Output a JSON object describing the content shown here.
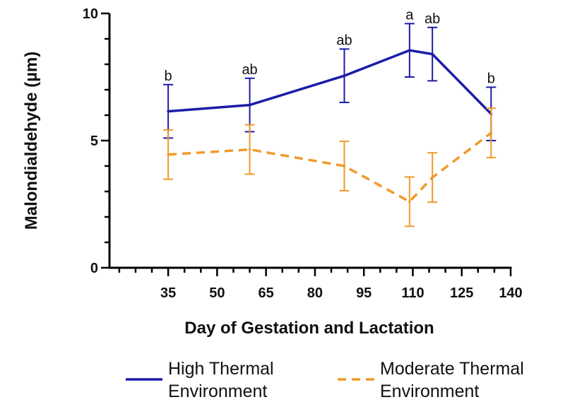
{
  "chart_data": {
    "type": "line",
    "title": "",
    "xlabel": "Day of Gestation and Lactation",
    "ylabel": "Malondialdehyde (µm)",
    "xlim": [
      17,
      140
    ],
    "ylim": [
      0,
      10
    ],
    "x_ticks": [
      35,
      50,
      65,
      80,
      95,
      110,
      125,
      140
    ],
    "x_tick_labels": [
      "35",
      "50",
      "65",
      "80",
      "95",
      "110",
      "125",
      "140"
    ],
    "y_ticks": [
      0,
      5,
      10
    ],
    "y_tick_labels": [
      "0",
      "5",
      "10"
    ],
    "x_minor_step": 5,
    "y_minor_step": 1,
    "grid": false,
    "legend_position": "bottom",
    "series": [
      {
        "name": "High Thermal Environment",
        "name_lines": [
          "High Thermal",
          "Environment"
        ],
        "color": "#1c1ca8",
        "line_style": "solid",
        "points": [
          {
            "x": 35,
            "y": 6.15,
            "err": 1.05,
            "label": "b"
          },
          {
            "x": 60,
            "y": 6.4,
            "err": 1.05,
            "label": "ab"
          },
          {
            "x": 89,
            "y": 7.55,
            "err": 1.05,
            "label": "ab"
          },
          {
            "x": 109,
            "y": 8.55,
            "err": 1.05,
            "label": "a"
          },
          {
            "x": 116,
            "y": 8.4,
            "err": 1.05,
            "label": "ab"
          },
          {
            "x": 134,
            "y": 6.05,
            "err": 1.05,
            "label": "b"
          }
        ]
      },
      {
        "name": "Moderate Thermal Environment",
        "name_lines": [
          "Moderate Thermal",
          "Environment"
        ],
        "color": "#ef9a2a",
        "line_style": "dashed",
        "points": [
          {
            "x": 35,
            "y": 4.45,
            "err": 0.97
          },
          {
            "x": 60,
            "y": 4.65,
            "err": 0.97
          },
          {
            "x": 89,
            "y": 4.0,
            "err": 0.97
          },
          {
            "x": 109,
            "y": 2.6,
            "err": 0.97
          },
          {
            "x": 116,
            "y": 3.55,
            "err": 0.97
          },
          {
            "x": 134,
            "y": 5.3,
            "err": 0.97
          }
        ]
      }
    ]
  }
}
